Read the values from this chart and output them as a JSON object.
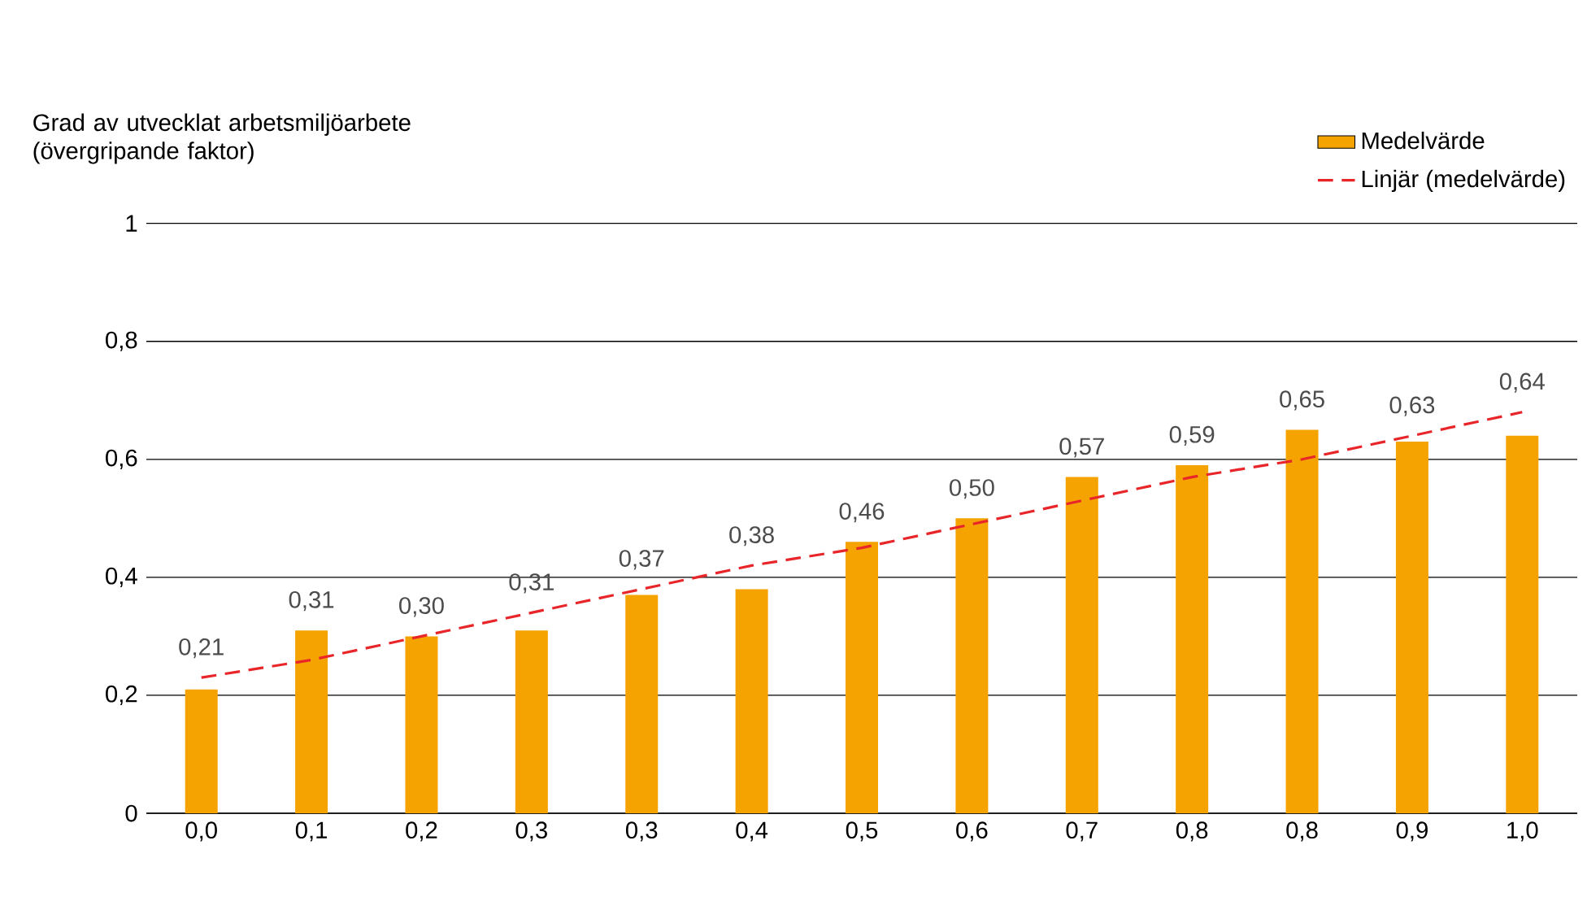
{
  "chart_data": {
    "type": "bar",
    "ylabel": "Grad av utvecklat arbetsmiljöarbete (övergripande faktor)",
    "categories": [
      "0,0",
      "0,1",
      "0,2",
      "0,3",
      "0,3",
      "0,4",
      "0,5",
      "0,6",
      "0,7",
      "0,8",
      "0,8",
      "0,9",
      "1,0"
    ],
    "series": [
      {
        "name": "Medelvärde",
        "color": "#f5a300",
        "values": [
          0.21,
          0.31,
          0.3,
          0.31,
          0.37,
          0.38,
          0.46,
          0.5,
          0.57,
          0.59,
          0.65,
          0.63,
          0.64
        ],
        "value_labels": [
          "0,21",
          "0,31",
          "0,30",
          "0,31",
          "0,37",
          "0,38",
          "0,46",
          "0,50",
          "0,57",
          "0,59",
          "0,65",
          "0,63",
          "0,64"
        ]
      },
      {
        "name": "Linjär (medelvärde)",
        "type": "line",
        "color": "#e8262a",
        "line_style": "dashed",
        "marker": "none",
        "values": [
          0.23,
          0.26,
          0.3,
          0.34,
          0.38,
          0.42,
          0.45,
          0.49,
          0.53,
          0.57,
          0.6,
          0.64,
          0.68
        ]
      }
    ],
    "ylim": [
      0,
      1
    ],
    "yticks": [
      0,
      {
        "value": 0.2,
        "label": "0,2"
      },
      {
        "value": 0.4,
        "label": "0,4"
      },
      {
        "value": 0.6,
        "label": "0,6"
      },
      {
        "value": 0.8,
        "label": "0,8"
      },
      1
    ],
    "grid": "y",
    "legend": "top right"
  }
}
